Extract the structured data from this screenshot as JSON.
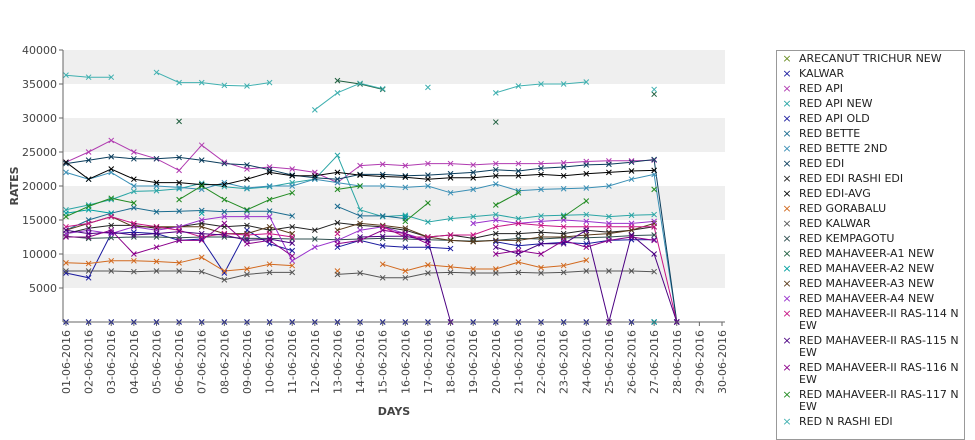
{
  "chart_data": {
    "type": "line",
    "xlabel": "DAYS",
    "ylabel": "RATES",
    "ylim": [
      0,
      40000
    ],
    "yticks": [
      5000,
      10000,
      15000,
      20000,
      25000,
      30000,
      35000,
      40000
    ],
    "grid": "alternating horizontal bands",
    "legend_position": "right",
    "categories": [
      "01-06-2016",
      "02-06-2016",
      "03-06-2016",
      "04-06-2016",
      "05-06-2016",
      "06-06-2016",
      "07-06-2016",
      "08-06-2016",
      "09-06-2016",
      "10-06-2016",
      "11-06-2016",
      "12-06-2016",
      "13-06-2016",
      "14-06-2016",
      "15-06-2016",
      "16-06-2016",
      "17-06-2016",
      "18-06-2016",
      "19-06-2016",
      "20-06-2016",
      "21-06-2016",
      "22-06-2016",
      "23-06-2016",
      "24-06-2016",
      "25-06-2016",
      "26-06-2016",
      "27-06-2016",
      "28-06-2016",
      "29-06-2016",
      "30-06-2016"
    ],
    "series": [
      {
        "name": "ARECANUT TRICHUR NEW",
        "color": "#6b8e23",
        "values": [
          0,
          0,
          0,
          0,
          0,
          0,
          0,
          0,
          0,
          0,
          0,
          0,
          0,
          0,
          0,
          0,
          0,
          0,
          0,
          0,
          0,
          0,
          0,
          0,
          0,
          0,
          0,
          0,
          null,
          null
        ]
      },
      {
        "name": "KALWAR",
        "color": "#1a1a9e",
        "values": [
          0,
          0,
          0,
          0,
          0,
          0,
          0,
          0,
          0,
          0,
          0,
          0,
          0,
          0,
          0,
          0,
          0,
          0,
          0,
          0,
          0,
          0,
          0,
          0,
          0,
          0,
          0,
          0,
          null,
          null
        ]
      },
      {
        "name": "RED API",
        "color": "#b03ab0",
        "values": [
          23500,
          25000,
          26700,
          25000,
          24000,
          22300,
          26000,
          23500,
          22500,
          22800,
          22500,
          22000,
          20500,
          23000,
          23200,
          23000,
          23300,
          23300,
          23100,
          23300,
          23300,
          23300,
          23400,
          23600,
          23700,
          23700,
          23800,
          null,
          null,
          null
        ]
      },
      {
        "name": "RED API NEW",
        "color": "#2aa5a5",
        "values": [
          16500,
          17200,
          18000,
          19200,
          19300,
          19600,
          20400,
          19900,
          19600,
          19900,
          20500,
          21000,
          24500,
          16500,
          15500,
          15700,
          14700,
          15200,
          15500,
          15800,
          15200,
          15600,
          15700,
          15800,
          15500,
          15700,
          15800,
          null,
          null,
          null
        ]
      },
      {
        "name": "RED API OLD",
        "color": "#1a1a9e",
        "values": [
          7200,
          6500,
          13000,
          13200,
          13000,
          12000,
          12200,
          7200,
          13500,
          11500,
          10500,
          null,
          11000,
          12000,
          11200,
          11000,
          11000,
          10800,
          null,
          11800,
          11200,
          11500,
          11700,
          11500,
          12000,
          12100,
          12100,
          null,
          null,
          null
        ]
      },
      {
        "name": "RED BETTE",
        "color": "#1a6b8e",
        "values": [
          13500,
          15000,
          16000,
          16800,
          16200,
          16300,
          16400,
          16200,
          16300,
          16300,
          15600,
          null,
          17000,
          15600,
          15600,
          15200,
          null,
          null,
          null,
          null,
          null,
          null,
          null,
          null,
          null,
          null,
          null,
          null,
          null,
          null
        ]
      },
      {
        "name": "RED BETTE 2ND",
        "color": "#3a8fb5",
        "values": [
          22000,
          21000,
          22000,
          20000,
          20000,
          19800,
          19500,
          20500,
          19700,
          20000,
          20000,
          21000,
          20500,
          20000,
          20000,
          19800,
          20000,
          19000,
          19500,
          20300,
          19300,
          19500,
          19600,
          19700,
          20000,
          21000,
          21700,
          0,
          null,
          null
        ]
      },
      {
        "name": "RED EDI",
        "color": "#0b3d5c",
        "values": [
          23300,
          23800,
          24300,
          24000,
          24000,
          24200,
          23800,
          23300,
          23100,
          22400,
          21600,
          21200,
          21000,
          21700,
          21700,
          21500,
          21600,
          21800,
          22000,
          22400,
          22200,
          22600,
          22800,
          23100,
          23200,
          23500,
          23900,
          0,
          null,
          null
        ]
      },
      {
        "name": "RED EDI RASHI EDI",
        "color": "#222222",
        "values": [
          13000,
          13800,
          14200,
          14200,
          13800,
          14000,
          14500,
          14000,
          14200,
          13500,
          14000,
          13500,
          14600,
          14200,
          14000,
          13500,
          12500,
          12800,
          12300,
          13000,
          13000,
          13200,
          13000,
          13500,
          13200,
          13500,
          14000,
          null,
          null,
          null
        ]
      },
      {
        "name": "RED EDI-AVG",
        "color": "#000000",
        "values": [
          23500,
          21000,
          22500,
          21000,
          20500,
          20500,
          20200,
          20200,
          21000,
          22000,
          21500,
          21500,
          22000,
          21600,
          21400,
          21300,
          21000,
          21200,
          21200,
          21500,
          21500,
          21700,
          21500,
          21800,
          22000,
          22200,
          22300,
          null,
          null,
          null
        ]
      },
      {
        "name": "RED GORABALU",
        "color": "#d2691e",
        "values": [
          8700,
          8600,
          9000,
          9000,
          8900,
          8700,
          9500,
          7500,
          7800,
          8500,
          8300,
          null,
          7500,
          null,
          8500,
          7500,
          8400,
          8100,
          7800,
          7800,
          8800,
          8000,
          8300,
          9100,
          null,
          null,
          null,
          null,
          null,
          null
        ]
      },
      {
        "name": "RED KALWAR",
        "color": "#555555",
        "values": [
          7500,
          7500,
          7500,
          7400,
          7500,
          7500,
          7400,
          6200,
          7000,
          7300,
          7300,
          null,
          7000,
          7200,
          6500,
          6500,
          7200,
          7300,
          7200,
          7200,
          7300,
          7200,
          7300,
          7500,
          7500,
          7500,
          7400,
          null,
          null,
          null
        ]
      },
      {
        "name": "RED KEMPAGOTU",
        "color": "#2f4f4f",
        "values": [
          12600,
          12300,
          12400,
          12500,
          12500,
          12400,
          12500,
          12500,
          12300,
          12300,
          12200,
          12200,
          12100,
          12200,
          12300,
          12200,
          12100,
          12000,
          11900,
          12000,
          12300,
          12200,
          12400,
          12400,
          12500,
          12700,
          12800,
          null,
          null,
          null
        ]
      },
      {
        "name": "RED MAHAVEER-A1 NEW",
        "color": "#1f5f3f",
        "values": [
          null,
          null,
          null,
          null,
          null,
          29500,
          null,
          null,
          null,
          null,
          null,
          null,
          35500,
          35000,
          34200,
          null,
          null,
          null,
          null,
          29400,
          null,
          null,
          null,
          null,
          null,
          null,
          33500,
          null,
          null,
          null
        ]
      },
      {
        "name": "RED MAHAVEER-A2 NEW",
        "color": "#00a0a0",
        "values": [
          16000,
          16500,
          16000,
          null,
          null,
          null,
          16000,
          null,
          null,
          null,
          null,
          null,
          null,
          null,
          null,
          15500,
          null,
          null,
          null,
          null,
          null,
          null,
          null,
          null,
          null,
          null,
          0,
          0,
          null,
          null
        ]
      },
      {
        "name": "RED MAHAVEER-A3 NEW",
        "color": "#5a3a1a",
        "values": [
          13500,
          14500,
          15500,
          14000,
          14000,
          14000,
          14000,
          13000,
          13000,
          14000,
          13000,
          null,
          13500,
          14500,
          14200,
          13800,
          12500,
          12000,
          11800,
          12000,
          12000,
          12500,
          12500,
          12800,
          13000,
          13500,
          14500,
          null,
          null,
          null
        ]
      },
      {
        "name": "RED MAHAVEER-A4 NEW",
        "color": "#9932cc",
        "values": [
          13000,
          13500,
          13000,
          14000,
          13500,
          14000,
          15000,
          15500,
          15500,
          15500,
          9000,
          11000,
          12000,
          13500,
          14000,
          13000,
          12000,
          null,
          14500,
          15000,
          14500,
          14800,
          15000,
          14800,
          14500,
          14500,
          14800,
          null,
          null,
          null
        ]
      },
      {
        "name": "RED MAHAVEER-II RAS-114 NEW",
        "color": "#c71585",
        "values": [
          14000,
          14500,
          15500,
          14500,
          14000,
          13500,
          12500,
          13000,
          12800,
          13000,
          12500,
          null,
          13000,
          null,
          14000,
          12500,
          12500,
          12800,
          12800,
          14000,
          14500,
          14200,
          14000,
          14000,
          14000,
          14000,
          14000,
          0,
          null,
          null
        ]
      },
      {
        "name": "RED MAHAVEER-II RAS-115 NEW",
        "color": "#4b0082",
        "values": [
          13500,
          13000,
          13200,
          12800,
          13000,
          13300,
          13000,
          12800,
          12000,
          12200,
          11600,
          null,
          null,
          12500,
          12600,
          12600,
          12000,
          0,
          null,
          11000,
          10000,
          11500,
          11500,
          13500,
          0,
          12800,
          10000,
          0,
          null,
          null
        ]
      },
      {
        "name": "RED MAHAVEER-II RAS-116 NEW",
        "color": "#8b008b",
        "values": [
          12500,
          12500,
          13500,
          10000,
          11000,
          12000,
          12000,
          14500,
          11500,
          12000,
          9700,
          null,
          11500,
          12000,
          13500,
          13000,
          11500,
          null,
          null,
          10000,
          10500,
          10000,
          12000,
          11000,
          12000,
          12500,
          12000,
          null,
          null,
          null
        ]
      },
      {
        "name": "RED MAHAVEER-II RAS-117 NEW",
        "color": "#228b22",
        "values": [
          15500,
          17000,
          18200,
          17500,
          null,
          18000,
          20000,
          18000,
          16500,
          18000,
          19000,
          null,
          19500,
          20000,
          null,
          14800,
          17500,
          null,
          null,
          17200,
          19000,
          null,
          15500,
          17800,
          null,
          null,
          19500,
          null,
          null,
          null
        ]
      },
      {
        "name": "RED N RASHI EDI",
        "color": "#40b0b0",
        "values": [
          36300,
          36000,
          36000,
          null,
          36700,
          35200,
          35200,
          34800,
          34700,
          35200,
          null,
          31200,
          33700,
          35100,
          34300,
          null,
          34500,
          null,
          null,
          33700,
          34700,
          35000,
          35000,
          35300,
          null,
          null,
          34200,
          null,
          null,
          null
        ]
      }
    ]
  }
}
